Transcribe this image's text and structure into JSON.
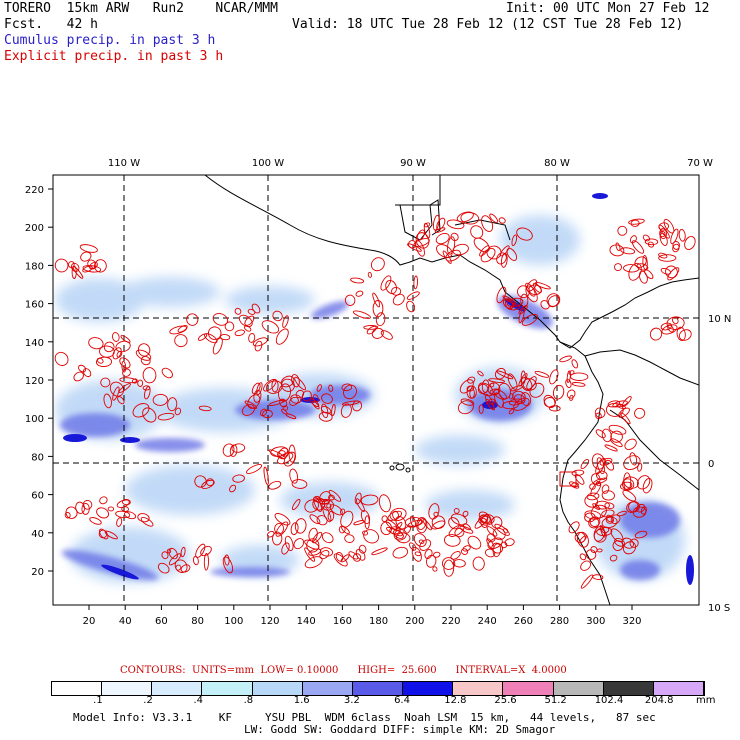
{
  "header": {
    "model": "TORERO  15km ARW   Run2    NCAR/MMM",
    "init": "Init: 00 UTC Mon 27 Feb 12",
    "fcst": "Fcst.   42 h",
    "valid": "Valid: 18 UTC Tue 28 Feb 12 (12 CST Tue 28 Feb 12)",
    "field1": "Cumulus precip. in past 3 h",
    "field2": "Explicit precip. in past 3 h"
  },
  "map": {
    "top_labels": [
      "110 W",
      "100 W",
      "90 W",
      "80 W",
      "70 W"
    ],
    "right_labels": [
      "10 N",
      "0",
      "10 S"
    ],
    "x_ticks": [
      "20",
      "40",
      "60",
      "80",
      "100",
      "120",
      "140",
      "160",
      "180",
      "200",
      "220",
      "240",
      "260",
      "280",
      "300",
      "320"
    ],
    "y_ticks": [
      "20",
      "40",
      "60",
      "80",
      "100",
      "120",
      "140",
      "160",
      "180",
      "200",
      "220"
    ],
    "colors": {
      "cumulus": "#4040e0",
      "explicit": "#e00000",
      "coast": "#000000"
    }
  },
  "contour_info": "CONTOURS:  UNITS=mm  LOW= 0.10000      HIGH=  25.600      INTERVAL=X  4.0000",
  "legend": {
    "labels": [
      ".1",
      ".2",
      ".4",
      ".8",
      "1.6",
      "3.2",
      "6.4",
      "12.8",
      "25.6",
      "51.2",
      "102.4",
      "204.8"
    ],
    "unit": "mm",
    "colors": [
      "#ffffff",
      "#eef6ff",
      "#d8ecff",
      "#c4f0f8",
      "#b8d8f8",
      "#9aa8f4",
      "#5a5ae8",
      "#1010e8",
      "#f8c8c8",
      "#f080b8",
      "#b8b8b8",
      "#383838",
      "#d8a8f8"
    ]
  },
  "footer": {
    "line1": "Model Info: V3.3.1    KF     YSU PBL  WDM 6class  Noah LSM  15 km,   44 levels,   87 sec",
    "line2": "LW: Godd SW: Goddard DIFF: simple KM: 2D Smagor"
  }
}
